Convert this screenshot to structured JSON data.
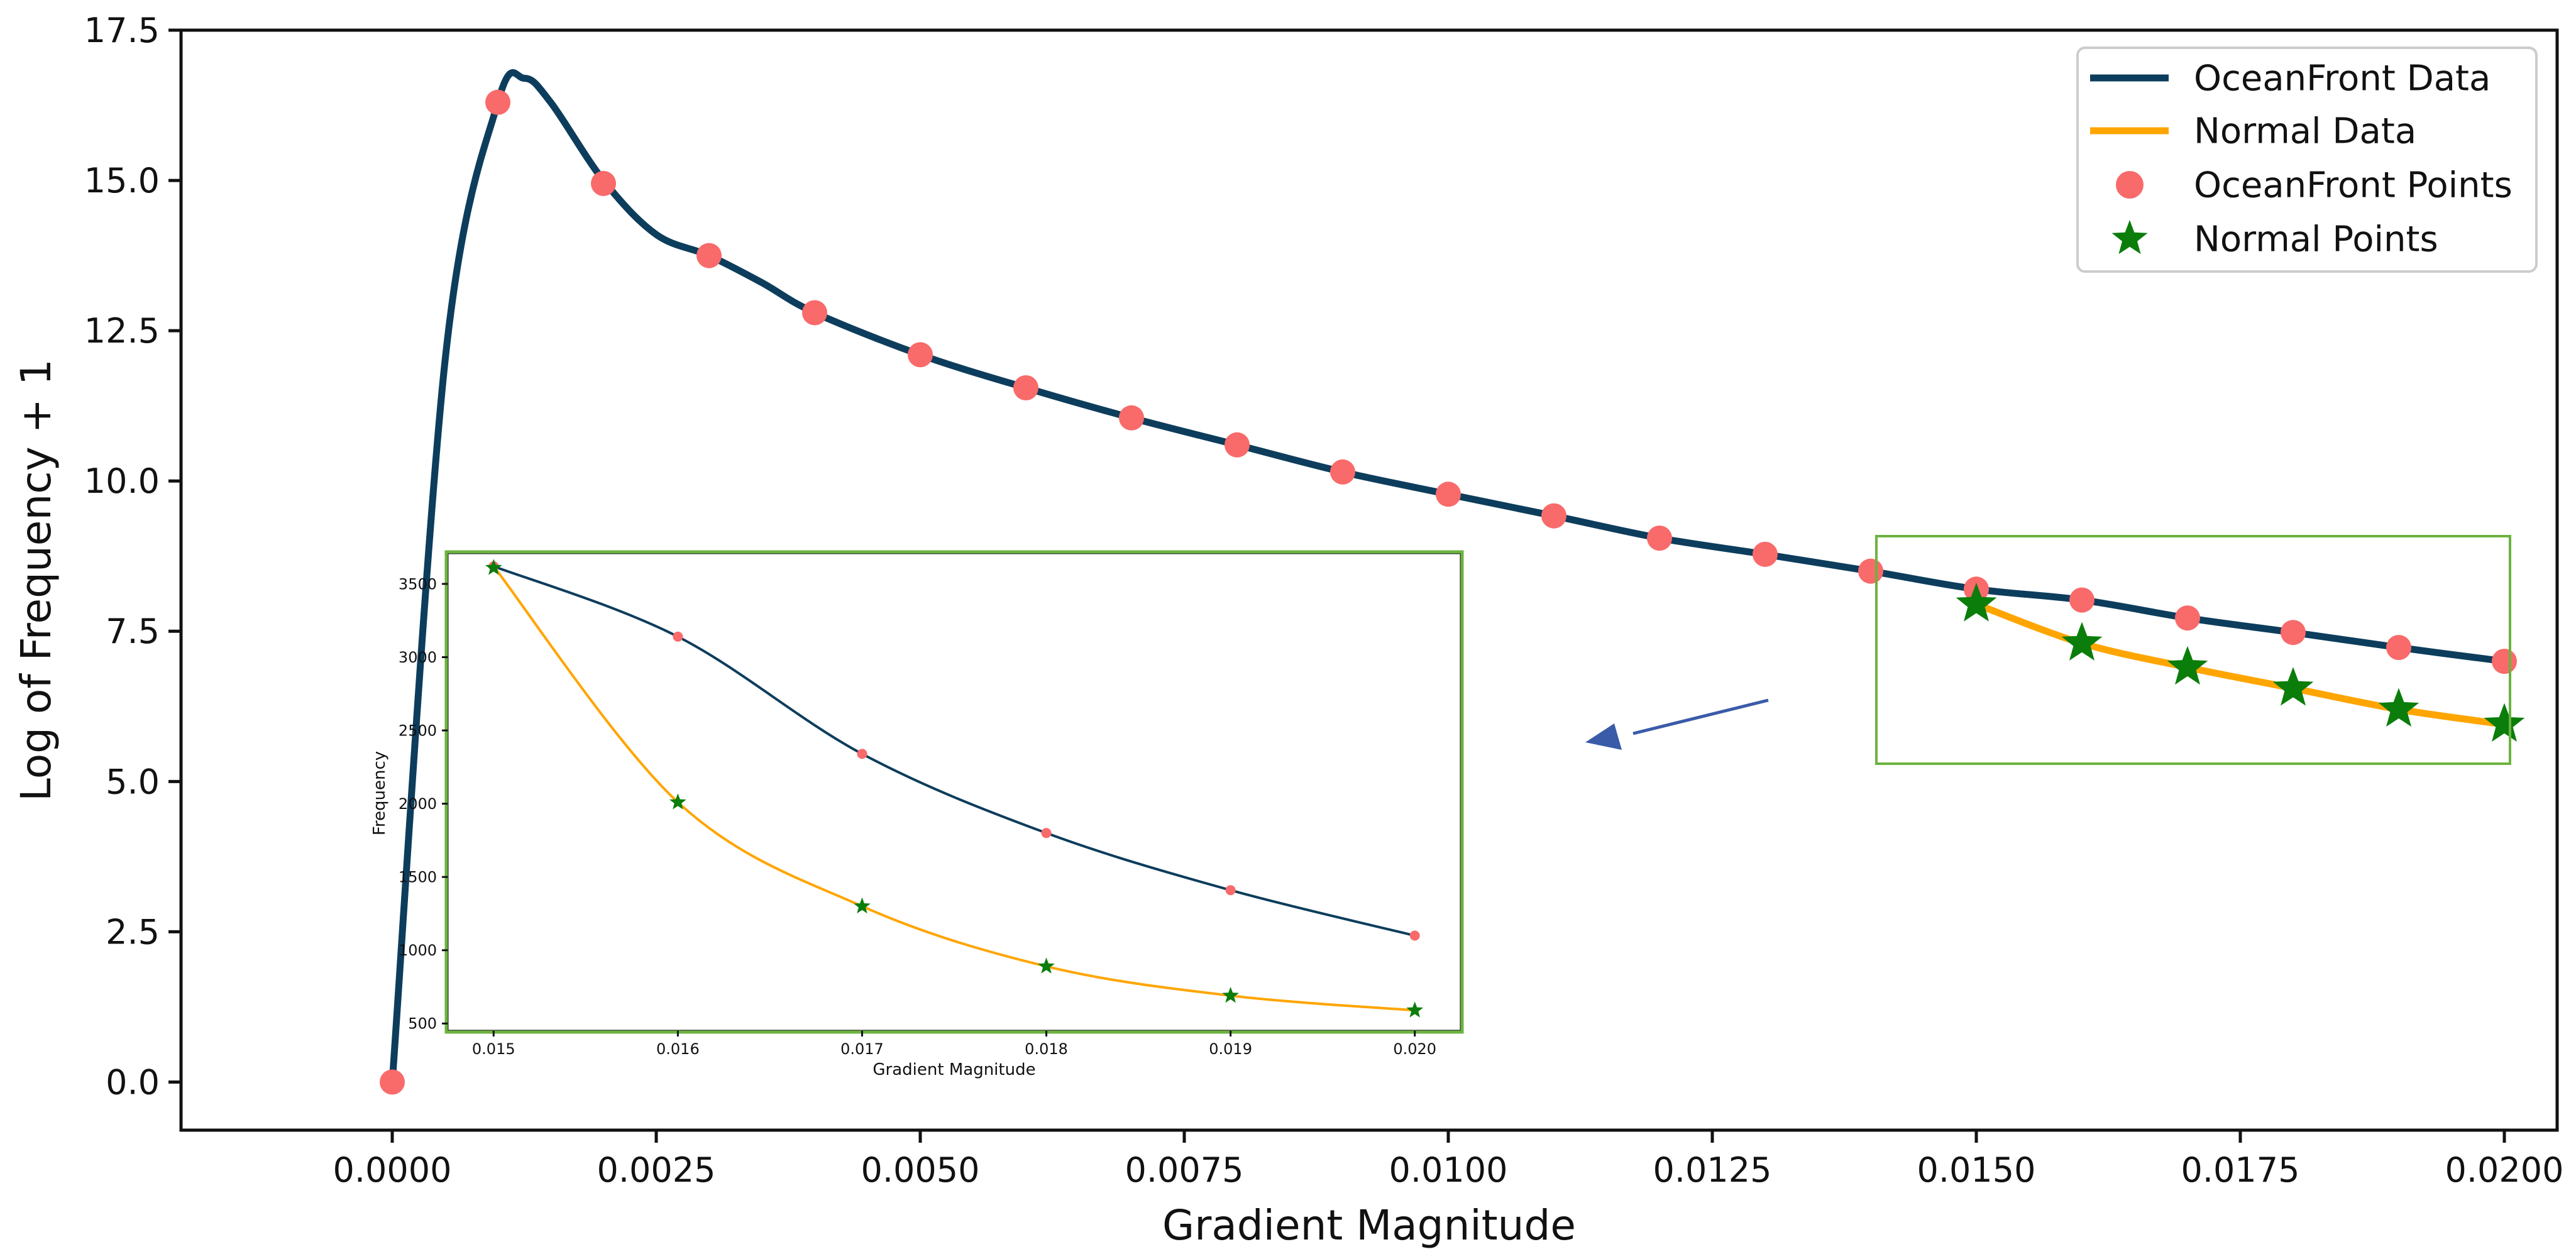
{
  "colors": {
    "oceanfront_line": "#0d3d5c",
    "normal_line": "#ffa500",
    "oceanfront_points": "#f96a6a",
    "normal_points": "#0a7d0a",
    "inset_frame": "#6cb33f",
    "zoom_frame": "#6cb33f",
    "arrow": "#3a5ba8",
    "axis": "#111111"
  },
  "chart_data": [
    {
      "type": "line",
      "title": "",
      "xlabel": "Gradient Magnitude",
      "ylabel": "Log of Frequency + 1",
      "xlim": [
        -0.002,
        0.0205
      ],
      "ylim": [
        -0.8,
        17.5
      ],
      "x_ticks": [
        {
          "value": 0.0,
          "label": "0.0000"
        },
        {
          "value": 0.0025,
          "label": "0.0025"
        },
        {
          "value": 0.005,
          "label": "0.0050"
        },
        {
          "value": 0.0075,
          "label": "0.0075"
        },
        {
          "value": 0.01,
          "label": "0.0100"
        },
        {
          "value": 0.0125,
          "label": "0.0125"
        },
        {
          "value": 0.015,
          "label": "0.0150"
        },
        {
          "value": 0.0175,
          "label": "0.0175"
        },
        {
          "value": 0.02,
          "label": "0.0200"
        }
      ],
      "y_ticks": [
        {
          "value": 0.0,
          "label": "0.0"
        },
        {
          "value": 2.5,
          "label": "2.5"
        },
        {
          "value": 5.0,
          "label": "5.0"
        },
        {
          "value": 7.5,
          "label": "7.5"
        },
        {
          "value": 10.0,
          "label": "10.0"
        },
        {
          "value": 12.5,
          "label": "12.5"
        },
        {
          "value": 15.0,
          "label": "15.0"
        },
        {
          "value": 17.5,
          "label": "17.5"
        }
      ],
      "grid": false,
      "legend_position": "top-right",
      "legend": [
        {
          "label": "OceanFront Data",
          "marker": "line",
          "color_key": "oceanfront_line"
        },
        {
          "label": "Normal Data",
          "marker": "line",
          "color_key": "normal_line"
        },
        {
          "label": "OceanFront Points",
          "marker": "circle",
          "color_key": "oceanfront_points"
        },
        {
          "label": "Normal Points",
          "marker": "star",
          "color_key": "normal_points"
        }
      ],
      "series": [
        {
          "name": "OceanFront Data",
          "kind": "smooth-line",
          "color_key": "oceanfront_line",
          "points": [
            [
              0.0,
              0.0
            ],
            [
              0.0005,
              12.0
            ],
            [
              0.001,
              16.3
            ],
            [
              0.00125,
              16.7
            ],
            [
              0.0015,
              16.3
            ],
            [
              0.002,
              15.0
            ],
            [
              0.0025,
              14.1
            ],
            [
              0.003,
              13.75
            ],
            [
              0.0035,
              13.3
            ],
            [
              0.004,
              12.8
            ],
            [
              0.005,
              12.1
            ],
            [
              0.006,
              11.55
            ],
            [
              0.007,
              11.05
            ],
            [
              0.008,
              10.6
            ],
            [
              0.009,
              10.15
            ],
            [
              0.01,
              9.78
            ],
            [
              0.011,
              9.42
            ],
            [
              0.012,
              9.05
            ],
            [
              0.013,
              8.78
            ],
            [
              0.014,
              8.5
            ],
            [
              0.015,
              8.2
            ],
            [
              0.016,
              8.02
            ],
            [
              0.017,
              7.72
            ],
            [
              0.018,
              7.48
            ],
            [
              0.019,
              7.23
            ],
            [
              0.02,
              7.0
            ]
          ]
        },
        {
          "name": "Normal Data",
          "kind": "smooth-line",
          "color_key": "normal_line",
          "points": [
            [
              0.015,
              7.95
            ],
            [
              0.016,
              7.3
            ],
            [
              0.017,
              6.9
            ],
            [
              0.018,
              6.55
            ],
            [
              0.019,
              6.2
            ],
            [
              0.02,
              5.95
            ]
          ]
        },
        {
          "name": "OceanFront Points",
          "kind": "circles",
          "color_key": "oceanfront_points",
          "points": [
            [
              0.0,
              0.0
            ],
            [
              0.001,
              16.3
            ],
            [
              0.002,
              14.95
            ],
            [
              0.003,
              13.75
            ],
            [
              0.004,
              12.8
            ],
            [
              0.005,
              12.1
            ],
            [
              0.006,
              11.55
            ],
            [
              0.007,
              11.05
            ],
            [
              0.008,
              10.6
            ],
            [
              0.009,
              10.15
            ],
            [
              0.01,
              9.78
            ],
            [
              0.011,
              9.42
            ],
            [
              0.012,
              9.05
            ],
            [
              0.013,
              8.78
            ],
            [
              0.014,
              8.5
            ],
            [
              0.015,
              8.2
            ],
            [
              0.016,
              8.02
            ],
            [
              0.017,
              7.72
            ],
            [
              0.018,
              7.48
            ],
            [
              0.019,
              7.23
            ],
            [
              0.02,
              7.0
            ]
          ]
        },
        {
          "name": "Normal Points",
          "kind": "stars",
          "color_key": "normal_points",
          "points": [
            [
              0.015,
              7.95
            ],
            [
              0.016,
              7.3
            ],
            [
              0.017,
              6.9
            ],
            [
              0.018,
              6.55
            ],
            [
              0.019,
              6.2
            ],
            [
              0.02,
              5.95
            ]
          ]
        }
      ],
      "zoom_region": {
        "x": [
          0.0147,
          0.0206
        ],
        "y": [
          5.3,
          9.1
        ]
      }
    },
    {
      "type": "line",
      "title": "",
      "xlabel": "Gradient Magnitude",
      "ylabel": "Frequency",
      "xlim": [
        0.01475,
        0.02025
      ],
      "ylim": [
        450,
        3710
      ],
      "x_ticks": [
        {
          "value": 0.015,
          "label": "0.015"
        },
        {
          "value": 0.016,
          "label": "0.016"
        },
        {
          "value": 0.017,
          "label": "0.017"
        },
        {
          "value": 0.018,
          "label": "0.018"
        },
        {
          "value": 0.019,
          "label": "0.019"
        },
        {
          "value": 0.02,
          "label": "0.020"
        }
      ],
      "y_ticks": [
        {
          "value": 500,
          "label": "500"
        },
        {
          "value": 1000,
          "label": "1000"
        },
        {
          "value": 1500,
          "label": "1500"
        },
        {
          "value": 2000,
          "label": "2000"
        },
        {
          "value": 2500,
          "label": "2500"
        },
        {
          "value": 3000,
          "label": "3000"
        },
        {
          "value": 3500,
          "label": "3500"
        }
      ],
      "grid": false,
      "series": [
        {
          "name": "OceanFront Data",
          "kind": "smooth-line",
          "color_key": "oceanfront_line",
          "points": [
            [
              0.015,
              3620
            ],
            [
              0.016,
              3140
            ],
            [
              0.017,
              2340
            ],
            [
              0.018,
              1800
            ],
            [
              0.019,
              1410
            ],
            [
              0.02,
              1100
            ]
          ]
        },
        {
          "name": "Normal Data",
          "kind": "smooth-line",
          "color_key": "normal_line",
          "points": [
            [
              0.015,
              3620
            ],
            [
              0.016,
              2010
            ],
            [
              0.017,
              1300
            ],
            [
              0.018,
              890
            ],
            [
              0.019,
              690
            ],
            [
              0.02,
              590
            ]
          ]
        },
        {
          "name": "OceanFront Points",
          "kind": "circles",
          "color_key": "oceanfront_points",
          "points": [
            [
              0.015,
              3620
            ],
            [
              0.016,
              3140
            ],
            [
              0.017,
              2340
            ],
            [
              0.018,
              1800
            ],
            [
              0.019,
              1410
            ],
            [
              0.02,
              1100
            ]
          ]
        },
        {
          "name": "Normal Points",
          "kind": "stars",
          "color_key": "normal_points",
          "points": [
            [
              0.015,
              3610
            ],
            [
              0.016,
              2010
            ],
            [
              0.017,
              1300
            ],
            [
              0.018,
              890
            ],
            [
              0.019,
              690
            ],
            [
              0.02,
              590
            ]
          ]
        }
      ]
    }
  ]
}
